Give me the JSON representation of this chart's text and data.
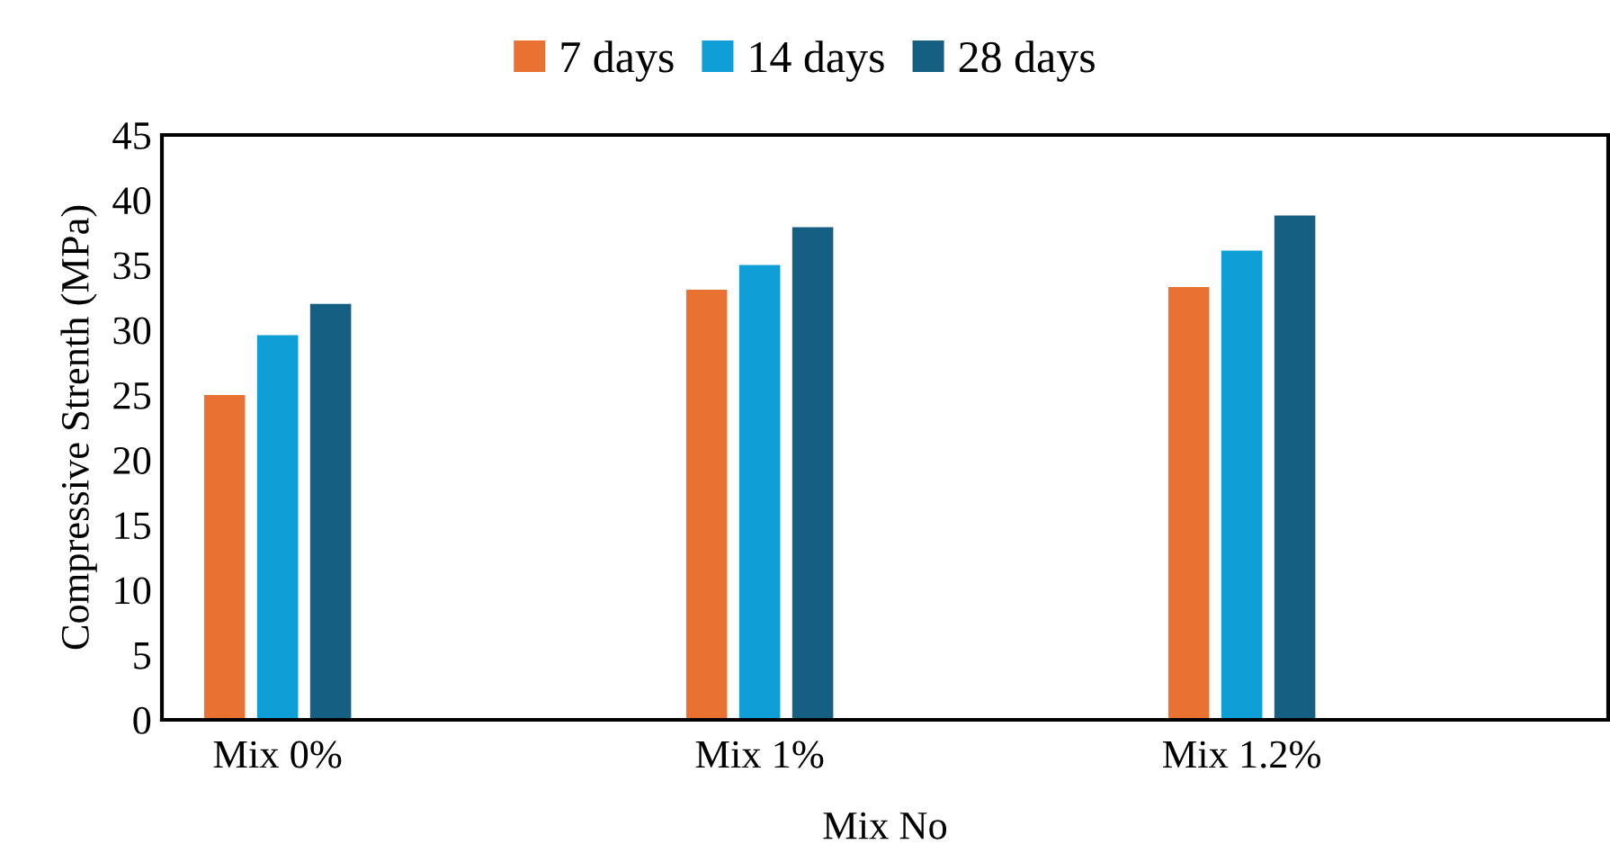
{
  "chart_data": {
    "type": "bar",
    "xlabel": "Mix No",
    "ylabel": "Compressive Strenth (MPa)",
    "categories": [
      "Mix 0%",
      "Mix 1%",
      "Mix 1.2%"
    ],
    "series": [
      {
        "name": "7 days",
        "color": "#e97132",
        "values": [
          25.0,
          33.1,
          33.3
        ]
      },
      {
        "name": "14 days",
        "color": "#0f9ed5",
        "values": [
          29.6,
          35.0,
          36.1
        ]
      },
      {
        "name": "28 days",
        "color": "#156082",
        "values": [
          32.0,
          37.9,
          38.8
        ]
      }
    ],
    "ylim": [
      0,
      45
    ],
    "yticks": [
      0,
      5,
      10,
      15,
      20,
      25,
      30,
      35,
      40,
      45
    ],
    "grid": false,
    "legend": "top"
  }
}
